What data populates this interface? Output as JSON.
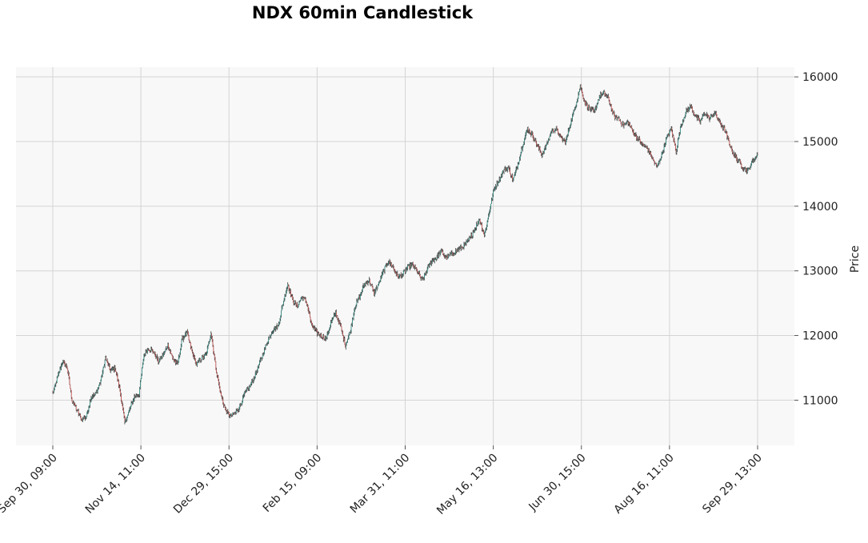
{
  "chart_data": {
    "type": "candlestick",
    "title": "NDX 60min Candlestick",
    "xlabel": "",
    "ylabel": "Price",
    "ylim": [
      10300,
      16150
    ],
    "yticks": [
      11000,
      12000,
      13000,
      14000,
      15000,
      16000
    ],
    "xticks": [
      "Sep 30, 09:00",
      "Nov 14, 11:00",
      "Dec 29, 15:00",
      "Feb 15, 09:00",
      "Mar 31, 11:00",
      "May 16, 13:00",
      "Jun 30, 15:00",
      "Aug 16, 11:00",
      "Sep 29, 13:00"
    ],
    "grid": true,
    "y_axis_side": "right",
    "colors": {
      "up": "#26a69a",
      "down": "#ef5350",
      "wick": "#404040",
      "plot_bg": "#f8f8f8",
      "grid": "#d4d4d4"
    },
    "closes": [
      11100,
      11350,
      11600,
      11500,
      11000,
      10850,
      10700,
      10750,
      11050,
      11100,
      11300,
      11650,
      11450,
      11500,
      11150,
      10650,
      10850,
      11050,
      11100,
      11700,
      11800,
      11750,
      11600,
      11700,
      11850,
      11650,
      11550,
      11950,
      12050,
      11750,
      11550,
      11650,
      11700,
      12050,
      11500,
      11100,
      10850,
      10750,
      10800,
      10900,
      11100,
      11200,
      11350,
      11550,
      11750,
      11950,
      12100,
      12150,
      12500,
      12800,
      12550,
      12450,
      12600,
      12500,
      12150,
      12050,
      12000,
      11950,
      12200,
      12350,
      12150,
      11850,
      12050,
      12450,
      12600,
      12800,
      12850,
      12650,
      12800,
      13000,
      13150,
      13050,
      12900,
      12950,
      13050,
      13100,
      13000,
      12850,
      13000,
      13150,
      13200,
      13300,
      13200,
      13250,
      13300,
      13350,
      13400,
      13500,
      13650,
      13800,
      13550,
      13900,
      14250,
      14400,
      14550,
      14600,
      14400,
      14650,
      14950,
      15200,
      15100,
      14950,
      14800,
      14950,
      15150,
      15200,
      15050,
      15000,
      15300,
      15550,
      15850,
      15600,
      15500,
      15450,
      15700,
      15750,
      15650,
      15400,
      15350,
      15250,
      15300,
      15150,
      15050,
      14950,
      14900,
      14750,
      14600,
      14800,
      15050,
      15200,
      14850,
      15250,
      15450,
      15550,
      15400,
      15300,
      15450,
      15350,
      15450,
      15300,
      15200,
      15000,
      14800,
      14700,
      14600,
      14550,
      14700,
      14800
    ]
  }
}
